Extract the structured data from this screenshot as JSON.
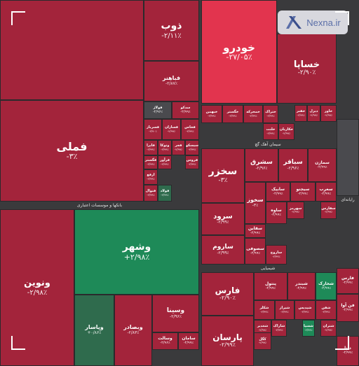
{
  "brand": {
    "name": "Nexna.ir"
  },
  "colors": {
    "neg": "#a3243b",
    "neg_bright": "#e2344e",
    "neg_dark": "#8a2236",
    "pos": "#1e8a58",
    "pos_soft": "#2f6b4d",
    "gray": "#4a4a4e"
  },
  "chart_data": {
    "type": "treemap",
    "sectors": [
      "بانکها و موسسات اعتباری",
      "سیمان آهک گچ",
      "شیمیایی",
      "رایانه‌ای"
    ],
    "tiles": [
      {
        "name": "",
        "change": ""
      },
      {
        "name": "ذوب",
        "change": "-۲/۱۱٪"
      },
      {
        "name": "فباهنر",
        "change": "-۲/۸۷٪"
      },
      {
        "name": "فولاژ",
        "change": "-۲/۹۶٪"
      },
      {
        "name": "سدکو",
        "change": "-۲/۹۹٪"
      },
      {
        "name": "فملی",
        "change": "-۳٪"
      },
      {
        "name": "فسرباز",
        "change": "-۲/۹۰٪"
      },
      {
        "name": "فسازان",
        "change": "-۲/۹۹٪"
      },
      {
        "name": "فخاس",
        "change": "-۲/۹۹٪"
      },
      {
        "name": "فایرا",
        "change": "-۲/۹۹٪"
      },
      {
        "name": "وتوکا",
        "change": "-۲/۹۹٪"
      },
      {
        "name": "فجر",
        "change": "-۲/۹۹٪"
      },
      {
        "name": "سیسکو",
        "change": "-۲/۹۹٪"
      },
      {
        "name": "فگستر",
        "change": "-۲/۹۹٪"
      },
      {
        "name": "فرآور",
        "change": "-۲/۹۹٪"
      },
      {
        "name": "فروس",
        "change": "-۲/۹۹٪"
      },
      {
        "name": "فنوال",
        "change": "-۲/۹۹٪"
      },
      {
        "name": "فولاد",
        "change": "-۲/۹۹٪"
      },
      {
        "name": "ارفع",
        "change": "-۲/۹۹٪"
      },
      {
        "name": "ونوین",
        "change": "-۲/۹۸٪"
      },
      {
        "name": "وشهر",
        "change": "+۲/۹۸٪"
      },
      {
        "name": "وپاسار",
        "change": "+۰/۸۶٪"
      },
      {
        "name": "وبصادر",
        "change": "-۲/۸۳٪"
      },
      {
        "name": "وسینا",
        "change": "-۲/۹۶٪"
      },
      {
        "name": "وسالت",
        "change": "-۲/۹۶٪"
      },
      {
        "name": "سامان",
        "change": "-۲/۹۹٪"
      },
      {
        "name": "خودرو",
        "change": "-۲۷/۰۵٪"
      },
      {
        "name": "خساپا",
        "change": "-۲/۹۰٪"
      },
      {
        "name": "خبهمن",
        "change": "-۲/۹۹٪"
      },
      {
        "name": "خگستر",
        "change": "-۲/۹۹٪"
      },
      {
        "name": "خمحرکه",
        "change": "-۲/۹۹٪"
      },
      {
        "name": "ختراک",
        "change": "-۲/۹۹٪"
      },
      {
        "name": "خکاریان",
        "change": "-۲/۹۹٪"
      },
      {
        "name": "خلنت",
        "change": "-۲/۹۹٪"
      },
      {
        "name": "خفنر",
        "change": "-۲/۹۹٪"
      },
      {
        "name": "خاور",
        "change": "-۲/۹۹٪"
      },
      {
        "name": "دیزل",
        "change": "-۲/۹۹٪"
      },
      {
        "name": "سخزر",
        "change": "-۳٪"
      },
      {
        "name": "سشرق",
        "change": "-۲/۹۶٪"
      },
      {
        "name": "سباقر",
        "change": "-۲/۹۶٪"
      },
      {
        "name": "سمازن",
        "change": "-۲/۹۹٪"
      },
      {
        "name": "سخوز",
        "change": "-۳٪"
      },
      {
        "name": "سابیک",
        "change": "-۲/۹۹٪"
      },
      {
        "name": "سیجنو",
        "change": "-۲/۹۹٪"
      },
      {
        "name": "سغرب",
        "change": "-۲/۹۹٪"
      },
      {
        "name": "سرود",
        "change": "-۲/۹۹٪"
      },
      {
        "name": "ساوه",
        "change": "-۲/۹۹٪"
      },
      {
        "name": "سهرمز",
        "change": "-۲/۹۹٪"
      },
      {
        "name": "سفارس",
        "change": "-۲/۹۹٪"
      },
      {
        "name": "سقاین",
        "change": "-۲/۹۹٪"
      },
      {
        "name": "ساروم",
        "change": "-۲/۹۹٪"
      },
      {
        "name": "ساروج",
        "change": "-۲/۹۹٪"
      },
      {
        "name": "سصوفی",
        "change": "-۲/۹۹٪"
      },
      {
        "name": "فارس",
        "change": "-۲/۹۰٪"
      },
      {
        "name": "پارسان",
        "change": "-۲/۹۹٪"
      },
      {
        "name": "پنتول",
        "change": "-۲/۹۹٪"
      },
      {
        "name": "شبندر",
        "change": "-۲/۹۹٪"
      },
      {
        "name": "شخارک",
        "change": "-۲/۹۹٪"
      },
      {
        "name": "شکلر",
        "change": "-۲/۹۹٪"
      },
      {
        "name": "شیراز",
        "change": "-۲/۹۹٪"
      },
      {
        "name": "شپدیس",
        "change": "-۲/۹۹٪"
      },
      {
        "name": "شفن",
        "change": "-۲/۹۹٪"
      },
      {
        "name": "شغدیر",
        "change": "-۲/۹۹٪"
      },
      {
        "name": "کگل",
        "change": "-۲/۹۹٪"
      },
      {
        "name": "فن آوا",
        "change": "-۲/۹۹٪"
      },
      {
        "name": "فارس",
        "change": "-۲/۹۹٪"
      },
      {
        "name": "شاراک",
        "change": "-۲/۹۹٪"
      },
      {
        "name": "شسپا",
        "change": "-۲/۹۹٪"
      },
      {
        "name": "شتران",
        "change": "-۲/۹۹٪"
      },
      {
        "name": "دانا",
        "change": "-۲/۹۹٪"
      },
      {
        "name": "",
        "change": ""
      }
    ]
  }
}
